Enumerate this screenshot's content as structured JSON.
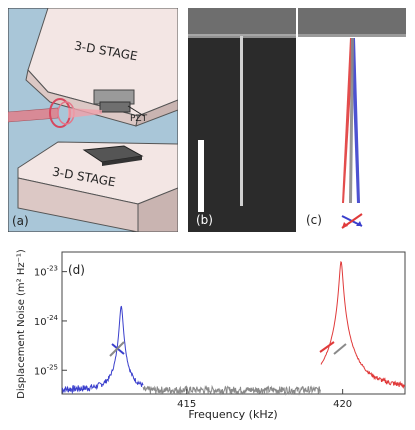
{
  "panel_a": {
    "label": "(a)",
    "stage_top": "3-D STAGE",
    "stage_bottom": "3-D STAGE",
    "pzt_label": "PZT"
  },
  "panel_b": {
    "label": "(b)"
  },
  "panel_c": {
    "label": "(c)"
  },
  "panel_d": {
    "label": "(d)"
  },
  "chart_data": {
    "type": "line",
    "xlabel": "Frequency (kHz)",
    "ylabel": "Displacement Noise (m² Hz⁻¹)",
    "xlim": [
      411,
      422
    ],
    "y_log": true,
    "ylim": [
      3.3e-26,
      2.5e-23
    ],
    "x_ticks": [
      415,
      420
    ],
    "x_tick_labels": [
      "415",
      "420"
    ],
    "y_tick_labels": [
      {
        "value": 1e-23,
        "base": "10",
        "exp": "-23"
      },
      {
        "value": 1e-24,
        "base": "10",
        "exp": "-24"
      },
      {
        "value": 1e-25,
        "base": "10",
        "exp": "-25"
      }
    ],
    "baseline": 4e-26,
    "series": [
      {
        "color": "#3a3fcc",
        "peak_x": 412.9,
        "peak_y": 2e-24,
        "range": [
          411,
          413.6
        ],
        "width": 0.05
      },
      {
        "color": "#8a8a8a",
        "peak_x": null,
        "peak_y": null,
        "range": [
          413.6,
          419.3
        ],
        "width": 0.05
      },
      {
        "color": "#e03a3a",
        "peak_x": 419.95,
        "peak_y": 1.6e-23,
        "range": [
          419.3,
          422
        ],
        "width": 0.05
      }
    ],
    "grid": false
  },
  "colors": {
    "blue": "#3a3fcc",
    "red": "#e03a3a",
    "gray": "#8a8a8a",
    "stage": "#f3e6e4",
    "sem_bg": "#2b2b2b"
  }
}
